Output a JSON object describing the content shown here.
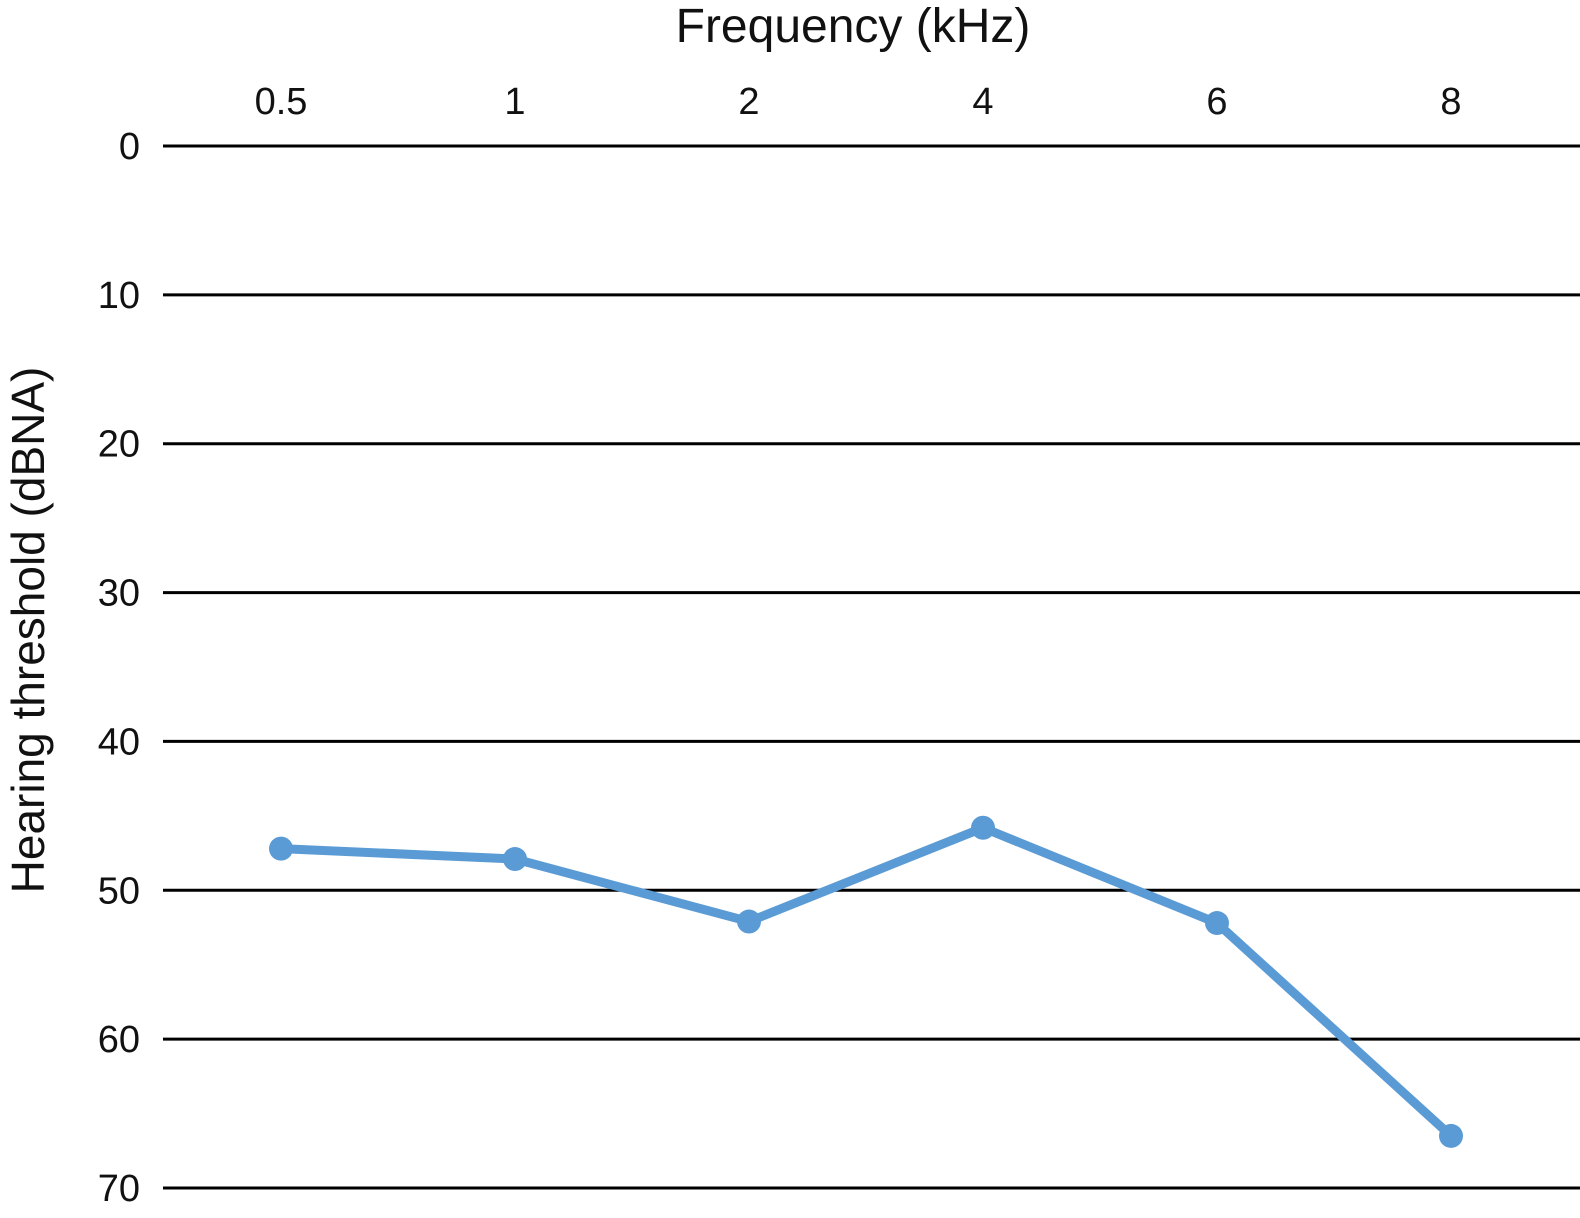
{
  "chart_data": {
    "type": "line",
    "xlabel": "Frequency (kHz)",
    "ylabel": "Hearing threshold (dBNA)",
    "categories": [
      "0.5",
      "1",
      "2",
      "4",
      "6",
      "8"
    ],
    "series": [
      {
        "values": [
          47.2,
          47.9,
          52.1,
          45.8,
          52.2,
          66.5
        ]
      }
    ],
    "y_ticks": [
      "0",
      "10",
      "20",
      "30",
      "40",
      "50",
      "60",
      "70"
    ],
    "ylim": [
      0,
      70
    ],
    "y_axis_inverted": true,
    "x_axis_position": "top",
    "grid": true,
    "grid_axis": "y",
    "line_color": "#5b9bd5",
    "grid_color": "#000000"
  }
}
